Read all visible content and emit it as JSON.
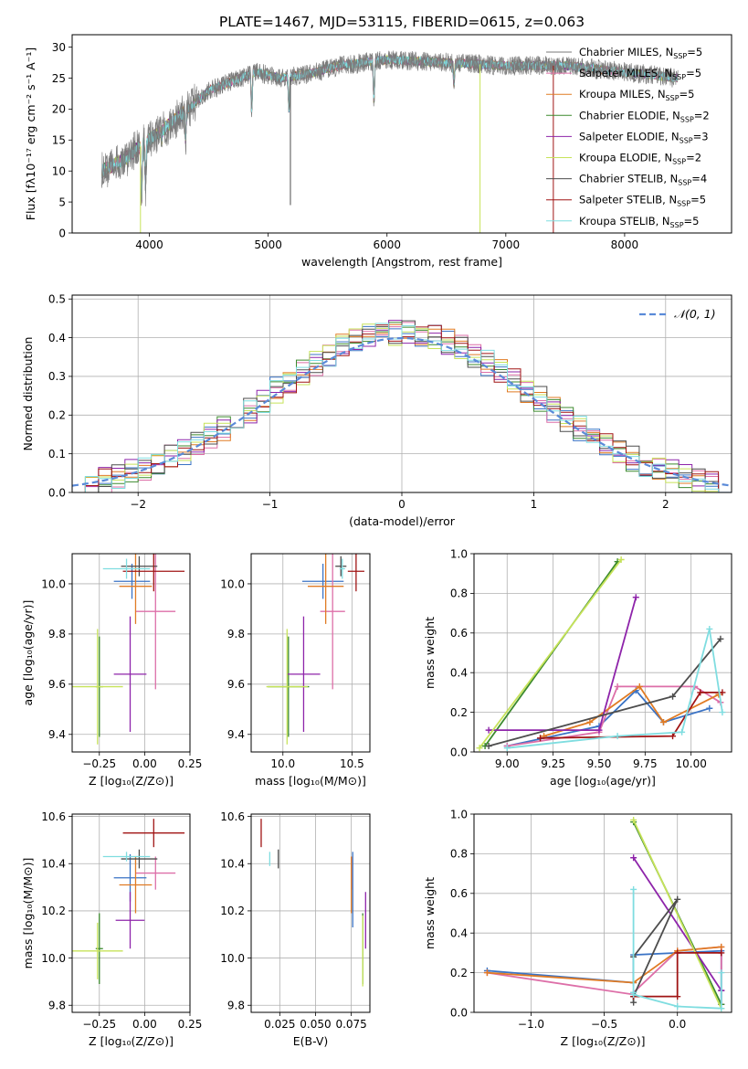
{
  "title": "PLATE=1467, MJD=53115, FIBERID=0615, z=0.063",
  "colors": {
    "c0": "#3a73c5",
    "c1": "#dd6fa8",
    "c2": "#e07b24",
    "c3": "#3c8a2e",
    "c4": "#8e24aa",
    "c5": "#c7e35a",
    "c6": "#4d4d4d",
    "c7": "#a01414",
    "c8": "#7fdde0",
    "gray": "#7a7a7a",
    "gauss": "#5a8ad8",
    "grid": "#b0b0b0"
  },
  "legend_models": [
    {
      "label": "Chabrier MILES, N",
      "sub": "SSP",
      "suffix": "=5",
      "color": "#7a7a7a"
    },
    {
      "label": "Salpeter MILES, N",
      "sub": "SSP",
      "suffix": "=5",
      "color": "#dd6fa8"
    },
    {
      "label": "Kroupa MILES, N",
      "sub": "SSP",
      "suffix": "=5",
      "color": "#e07b24"
    },
    {
      "label": "Chabrier ELODIE, N",
      "sub": "SSP",
      "suffix": "=2",
      "color": "#3c8a2e"
    },
    {
      "label": "Salpeter ELODIE, N",
      "sub": "SSP",
      "suffix": "=3",
      "color": "#8e24aa"
    },
    {
      "label": "Kroupa ELODIE, N",
      "sub": "SSP",
      "suffix": "=2",
      "color": "#c7e35a"
    },
    {
      "label": "Chabrier STELIB, N",
      "sub": "SSP",
      "suffix": "=4",
      "color": "#4d4d4d"
    },
    {
      "label": "Salpeter STELIB, N",
      "sub": "SSP",
      "suffix": "=5",
      "color": "#a01414"
    },
    {
      "label": "Kroupa STELIB, N",
      "sub": "SSP",
      "suffix": "=5",
      "color": "#7fdde0"
    }
  ],
  "chart_data": [
    {
      "id": "spectrum",
      "type": "line",
      "xlabel": "wavelength [Angstrom, rest frame]",
      "ylabel": "Flux [fλ10⁻¹⁷ erg cm⁻² s⁻¹ A⁻¹]",
      "xlim": [
        3350,
        8900
      ],
      "ylim": [
        0,
        32
      ],
      "xticks": [
        4000,
        5000,
        6000,
        7000,
        8000
      ],
      "yticks": [
        0,
        5,
        10,
        15,
        20,
        25,
        30
      ],
      "continuum": {
        "x": [
          3600,
          3800,
          3950,
          4100,
          4300,
          4500,
          4700,
          4900,
          5100,
          5300,
          5600,
          6000,
          6500,
          7000,
          7500,
          8000,
          8450
        ],
        "y": [
          10,
          12,
          14.5,
          16.5,
          19.5,
          23,
          24.5,
          26,
          25,
          25.5,
          27,
          28,
          27.5,
          27,
          27,
          26,
          25
        ]
      },
      "absorption_features": [
        {
          "x": 3934,
          "y": 5
        },
        {
          "x": 3968,
          "y": 7
        },
        {
          "x": 4102,
          "y": 15
        },
        {
          "x": 4305,
          "y": 15
        },
        {
          "x": 4861,
          "y": 20
        },
        {
          "x": 5175,
          "y": 20
        },
        {
          "x": 5890,
          "y": 21
        },
        {
          "x": 6563,
          "y": 24
        }
      ],
      "spikes": [
        {
          "x": 3925,
          "y": 0,
          "color": "#c7e35a"
        },
        {
          "x": 5187,
          "y": 4.5,
          "color": "#4d4d4d"
        },
        {
          "x": 6783,
          "y": 0,
          "color": "#c7e35a"
        },
        {
          "x": 7400,
          "y": 0,
          "color": "#a01414"
        }
      ]
    },
    {
      "id": "residuals",
      "type": "histogram",
      "xlabel": "(data-model)/error",
      "ylabel": "Normed distribution",
      "xlim": [
        -2.5,
        2.5
      ],
      "ylim": [
        0,
        0.51
      ],
      "xticks": [
        -2,
        -1,
        0,
        1,
        2
      ],
      "xticklabels": [
        "−2",
        "−1",
        "0",
        "1",
        "2"
      ],
      "yticks": [
        0,
        0.1,
        0.2,
        0.3,
        0.4,
        0.5
      ],
      "legend": "𝒩(0, 1)",
      "bin_width": 0.1,
      "gaussian": {
        "mu": 0,
        "sigma": 1
      }
    },
    {
      "id": "age_vs_Z",
      "type": "errorbar",
      "xlabel": "Z [log₁₀(Z/Z⊙)]",
      "ylabel": "age  [log₁₀(age/yr)]",
      "xlim": [
        -0.4,
        0.25
      ],
      "ylim": [
        9.33,
        10.12
      ],
      "xticks": [
        -0.25,
        0,
        0.25
      ],
      "xticklabels": [
        "−0.25",
        "0.00",
        "0.25"
      ],
      "yticks": [
        9.4,
        9.6,
        9.8,
        10.0
      ],
      "points": [
        {
          "x": -0.07,
          "xe": 0.1,
          "y": 10.01,
          "ye": 0.07,
          "color": "#3a73c5"
        },
        {
          "x": 0.06,
          "xe": 0.11,
          "y": 9.89,
          "ye": 0.31,
          "color": "#dd6fa8"
        },
        {
          "x": -0.05,
          "xe": 0.09,
          "y": 9.99,
          "ye": 0.15,
          "color": "#e07b24"
        },
        {
          "x": -0.25,
          "xe": 0.02,
          "y": 9.59,
          "ye": 0.2,
          "color": "#3c8a2e"
        },
        {
          "x": -0.08,
          "xe": 0.09,
          "y": 9.64,
          "ye": 0.23,
          "color": "#8e24aa"
        },
        {
          "x": -0.26,
          "xe": 0.14,
          "y": 9.59,
          "ye": 0.23,
          "color": "#c7e35a"
        },
        {
          "x": -0.03,
          "xe": 0.1,
          "y": 10.07,
          "ye": 0.04,
          "color": "#4d4d4d"
        },
        {
          "x": 0.05,
          "xe": 0.17,
          "y": 10.05,
          "ye": 0.08,
          "color": "#a01414"
        },
        {
          "x": -0.1,
          "xe": 0.13,
          "y": 10.06,
          "ye": 0.04,
          "color": "#7fdde0"
        }
      ]
    },
    {
      "id": "age_vs_mass",
      "type": "errorbar",
      "xlabel": "mass [log₁₀(M/M⊙)]",
      "ylabel": "",
      "xlim": [
        9.77,
        10.63
      ],
      "ylim": [
        9.33,
        10.12
      ],
      "xticks": [
        10.0,
        10.5
      ],
      "xticklabels": [
        "10.0",
        "10.5"
      ],
      "yticks": [
        9.4,
        9.6,
        9.8,
        10.0
      ],
      "points": [
        {
          "x": 10.29,
          "xe": 0.15,
          "y": 10.01,
          "ye": 0.07,
          "color": "#3a73c5"
        },
        {
          "x": 10.36,
          "xe": 0.09,
          "y": 9.89,
          "ye": 0.31,
          "color": "#dd6fa8"
        },
        {
          "x": 10.31,
          "xe": 0.13,
          "y": 9.99,
          "ye": 0.15,
          "color": "#e07b24"
        },
        {
          "x": 10.04,
          "xe": 0.15,
          "y": 9.59,
          "ye": 0.2,
          "color": "#3c8a2e"
        },
        {
          "x": 10.15,
          "xe": 0.12,
          "y": 9.64,
          "ye": 0.23,
          "color": "#8e24aa"
        },
        {
          "x": 10.03,
          "xe": 0.15,
          "y": 9.59,
          "ye": 0.23,
          "color": "#c7e35a"
        },
        {
          "x": 10.42,
          "xe": 0.04,
          "y": 10.07,
          "ye": 0.04,
          "color": "#4d4d4d"
        },
        {
          "x": 10.53,
          "xe": 0.06,
          "y": 10.05,
          "ye": 0.08,
          "color": "#a01414"
        },
        {
          "x": 10.43,
          "xe": 0.02,
          "y": 10.06,
          "ye": 0.04,
          "color": "#7fdde0"
        }
      ]
    },
    {
      "id": "weight_vs_age",
      "type": "line",
      "xlabel": "age  [log₁₀(age/yr)]",
      "ylabel": "mass weight",
      "xlim": [
        8.82,
        10.22
      ],
      "ylim": [
        0,
        1
      ],
      "xticks": [
        9.0,
        9.25,
        9.5,
        9.75,
        10.0
      ],
      "xticklabels": [
        "9.00",
        "9.25",
        "9.50",
        "9.75",
        "10.00"
      ],
      "yticks": [
        0,
        0.2,
        0.4,
        0.6,
        0.8,
        1.0
      ],
      "series": [
        {
          "color": "#3a73c5",
          "x": [
            9.0,
            9.5,
            9.7,
            9.85,
            10.1
          ],
          "y": [
            0.03,
            0.13,
            0.31,
            0.15,
            0.22
          ]
        },
        {
          "color": "#dd6fa8",
          "x": [
            9.0,
            9.5,
            9.6,
            10.02,
            10.16
          ],
          "y": [
            0.03,
            0.1,
            0.33,
            0.33,
            0.25
          ]
        },
        {
          "color": "#e07b24",
          "x": [
            9.2,
            9.45,
            9.72,
            9.85,
            10.15
          ],
          "y": [
            0.08,
            0.15,
            0.33,
            0.15,
            0.29
          ]
        },
        {
          "color": "#3c8a2e",
          "x": [
            8.88,
            9.6
          ],
          "y": [
            0.03,
            0.96
          ]
        },
        {
          "color": "#8e24aa",
          "x": [
            8.9,
            9.5,
            9.7
          ],
          "y": [
            0.11,
            0.11,
            0.78
          ]
        },
        {
          "color": "#c7e35a",
          "x": [
            8.85,
            9.62
          ],
          "y": [
            0.02,
            0.97
          ]
        },
        {
          "color": "#4d4d4d",
          "x": [
            8.9,
            9.9,
            10.16
          ],
          "y": [
            0.03,
            0.28,
            0.57
          ]
        },
        {
          "color": "#a01414",
          "x": [
            9.18,
            9.9,
            10.05,
            10.17
          ],
          "y": [
            0.07,
            0.08,
            0.3,
            0.3
          ]
        },
        {
          "color": "#7fdde0",
          "x": [
            9.0,
            9.6,
            9.95,
            10.1,
            10.17
          ],
          "y": [
            0.02,
            0.08,
            0.1,
            0.62,
            0.2
          ]
        }
      ]
    },
    {
      "id": "mass_vs_Z",
      "type": "errorbar",
      "xlabel": "Z [log₁₀(Z/Z⊙)]",
      "ylabel": "mass [log₁₀(M/M⊙)]",
      "xlim": [
        -0.4,
        0.25
      ],
      "ylim": [
        9.77,
        10.61
      ],
      "xticks": [
        -0.25,
        0,
        0.25
      ],
      "xticklabels": [
        "−0.25",
        "0.00",
        "0.25"
      ],
      "yticks": [
        9.8,
        10.0,
        10.2,
        10.4,
        10.6
      ],
      "points": [
        {
          "x": -0.08,
          "xe": 0.09,
          "y": 10.34,
          "ye": 0.1,
          "color": "#3a73c5"
        },
        {
          "x": 0.06,
          "xe": 0.11,
          "y": 10.36,
          "ye": 0.07,
          "color": "#dd6fa8"
        },
        {
          "x": -0.05,
          "xe": 0.09,
          "y": 10.31,
          "ye": 0.12,
          "color": "#e07b24"
        },
        {
          "x": -0.25,
          "xe": 0.02,
          "y": 10.04,
          "ye": 0.15,
          "color": "#3c8a2e"
        },
        {
          "x": -0.08,
          "xe": 0.08,
          "y": 10.16,
          "ye": 0.12,
          "color": "#8e24aa"
        },
        {
          "x": -0.26,
          "xe": 0.14,
          "y": 10.03,
          "ye": 0.12,
          "color": "#c7e35a"
        },
        {
          "x": -0.03,
          "xe": 0.1,
          "y": 10.42,
          "ye": 0.04,
          "color": "#4d4d4d"
        },
        {
          "x": 0.05,
          "xe": 0.17,
          "y": 10.53,
          "ye": 0.06,
          "color": "#a01414"
        },
        {
          "x": -0.1,
          "xe": 0.13,
          "y": 10.43,
          "ye": 0.02,
          "color": "#7fdde0"
        }
      ]
    },
    {
      "id": "mass_vs_ebv",
      "type": "errorbar",
      "xlabel": "E(B-V)",
      "ylabel": "",
      "xlim": [
        0.005,
        0.088
      ],
      "ylim": [
        9.77,
        10.61
      ],
      "xticks": [
        0.025,
        0.05,
        0.075
      ],
      "xticklabels": [
        "0.025",
        "0.050",
        "0.075"
      ],
      "yticks": [
        9.8,
        10.0,
        10.2,
        10.4,
        10.6
      ],
      "points": [
        {
          "x": 0.076,
          "xe": 0.0,
          "y": 10.29,
          "ye": 0.16,
          "color": "#3a73c5"
        },
        {
          "x": 0.075,
          "xe": 0.0,
          "y": 10.36,
          "ye": 0.07,
          "color": "#dd6fa8"
        },
        {
          "x": 0.075,
          "xe": 0.0,
          "y": 10.31,
          "ye": 0.12,
          "color": "#e07b24"
        },
        {
          "x": 0.083,
          "xe": 0.0,
          "y": 10.04,
          "ye": 0.15,
          "color": "#3c8a2e"
        },
        {
          "x": 0.085,
          "xe": 0.0,
          "y": 10.16,
          "ye": 0.12,
          "color": "#8e24aa"
        },
        {
          "x": 0.083,
          "xe": 0.0,
          "y": 10.03,
          "ye": 0.15,
          "color": "#c7e35a"
        },
        {
          "x": 0.024,
          "xe": 0.0,
          "y": 10.42,
          "ye": 0.04,
          "color": "#4d4d4d"
        },
        {
          "x": 0.012,
          "xe": 0.0,
          "y": 10.53,
          "ye": 0.06,
          "color": "#a01414"
        },
        {
          "x": 0.018,
          "xe": 0.0,
          "y": 10.42,
          "ye": 0.03,
          "color": "#7fdde0"
        }
      ]
    },
    {
      "id": "weight_vs_Z",
      "type": "line",
      "xlabel": "Z [log₁₀(Z/Z⊙)]",
      "ylabel": "mass weight",
      "xlim": [
        -1.39,
        0.37
      ],
      "ylim": [
        0,
        1
      ],
      "xticks": [
        -1.0,
        -0.5,
        0.0
      ],
      "xticklabels": [
        "−1.0",
        "−0.5",
        "0.0"
      ],
      "yticks": [
        0,
        0.2,
        0.4,
        0.6,
        0.8,
        1.0
      ],
      "series": [
        {
          "color": "#3a73c5",
          "x": [
            -1.3,
            -0.3,
            -0.3,
            0.0,
            0.3,
            0.3
          ],
          "y": [
            0.21,
            0.15,
            0.29,
            0.3,
            0.31,
            0.04
          ]
        },
        {
          "color": "#dd6fa8",
          "x": [
            -1.3,
            -0.3,
            -0.3,
            0.0,
            0.3,
            0.3
          ],
          "y": [
            0.2,
            0.09,
            0.1,
            0.31,
            0.33,
            0.04
          ]
        },
        {
          "color": "#e07b24",
          "x": [
            -1.3,
            -0.3,
            -0.3,
            0.0,
            0.3
          ],
          "y": [
            0.2,
            0.15,
            0.15,
            0.31,
            0.33
          ]
        },
        {
          "color": "#3c8a2e",
          "x": [
            -0.3,
            0.3
          ],
          "y": [
            0.96,
            0.04
          ]
        },
        {
          "color": "#8e24aa",
          "x": [
            -0.3,
            0.3,
            0.3
          ],
          "y": [
            0.78,
            0.11,
            0.11
          ]
        },
        {
          "color": "#c7e35a",
          "x": [
            -0.3,
            0.3
          ],
          "y": [
            0.97,
            0.02
          ]
        },
        {
          "color": "#4d4d4d",
          "x": [
            -0.3,
            0.0,
            -0.3,
            -0.3
          ],
          "y": [
            0.28,
            0.57,
            0.08,
            0.05
          ]
        },
        {
          "color": "#a01414",
          "x": [
            -0.3,
            0.0,
            0.0,
            0.3
          ],
          "y": [
            0.08,
            0.08,
            0.3,
            0.3
          ]
        },
        {
          "color": "#7fdde0",
          "x": [
            -0.3,
            -0.3,
            -0.3,
            0.0,
            0.3,
            0.3
          ],
          "y": [
            0.62,
            0.1,
            0.09,
            0.03,
            0.02,
            0.2
          ]
        }
      ]
    }
  ]
}
